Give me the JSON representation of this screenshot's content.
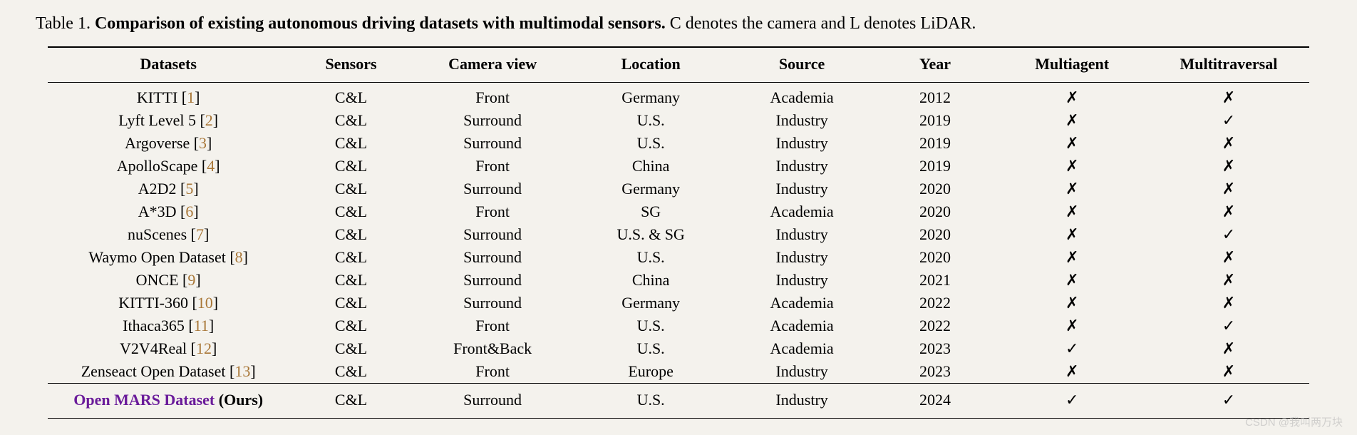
{
  "caption": {
    "prefix": "Table 1. ",
    "title": "Comparison of existing autonomous driving datasets with multimodal sensors.",
    "suffix": " C denotes the camera and L denotes LiDAR."
  },
  "columns": [
    "Datasets",
    "Sensors",
    "Camera view",
    "Location",
    "Source",
    "Year",
    "Multiagent",
    "Multitraversal"
  ],
  "rows": [
    {
      "name": "KITTI",
      "cite": "1",
      "sensors": "C&L",
      "camera": "Front",
      "location": "Germany",
      "source": "Academia",
      "year": "2012",
      "multiagent": "✗",
      "multitraversal": "✗"
    },
    {
      "name": "Lyft Level 5",
      "cite": "2",
      "sensors": "C&L",
      "camera": "Surround",
      "location": "U.S.",
      "source": "Industry",
      "year": "2019",
      "multiagent": "✗",
      "multitraversal": "✓"
    },
    {
      "name": "Argoverse",
      "cite": "3",
      "sensors": "C&L",
      "camera": "Surround",
      "location": "U.S.",
      "source": "Industry",
      "year": "2019",
      "multiagent": "✗",
      "multitraversal": "✗"
    },
    {
      "name": "ApolloScape",
      "cite": "4",
      "sensors": "C&L",
      "camera": "Front",
      "location": "China",
      "source": "Industry",
      "year": "2019",
      "multiagent": "✗",
      "multitraversal": "✗"
    },
    {
      "name": "A2D2",
      "cite": "5",
      "sensors": "C&L",
      "camera": "Surround",
      "location": "Germany",
      "source": "Industry",
      "year": "2020",
      "multiagent": "✗",
      "multitraversal": "✗"
    },
    {
      "name": "A*3D",
      "cite": "6",
      "sensors": "C&L",
      "camera": "Front",
      "location": "SG",
      "source": "Academia",
      "year": "2020",
      "multiagent": "✗",
      "multitraversal": "✗"
    },
    {
      "name": "nuScenes",
      "cite": "7",
      "sensors": "C&L",
      "camera": "Surround",
      "location": "U.S. & SG",
      "source": "Industry",
      "year": "2020",
      "multiagent": "✗",
      "multitraversal": "✓"
    },
    {
      "name": "Waymo Open Dataset",
      "cite": "8",
      "sensors": "C&L",
      "camera": "Surround",
      "location": "U.S.",
      "source": "Industry",
      "year": "2020",
      "multiagent": "✗",
      "multitraversal": "✗"
    },
    {
      "name": "ONCE",
      "cite": "9",
      "sensors": "C&L",
      "camera": "Surround",
      "location": "China",
      "source": "Industry",
      "year": "2021",
      "multiagent": "✗",
      "multitraversal": "✗"
    },
    {
      "name": "KITTI-360",
      "cite": "10",
      "sensors": "C&L",
      "camera": "Surround",
      "location": "Germany",
      "source": "Academia",
      "year": "2022",
      "multiagent": "✗",
      "multitraversal": "✗"
    },
    {
      "name": "Ithaca365",
      "cite": "11",
      "sensors": "C&L",
      "camera": "Front",
      "location": "U.S.",
      "source": "Academia",
      "year": "2022",
      "multiagent": "✗",
      "multitraversal": "✓"
    },
    {
      "name": "V2V4Real",
      "cite": "12",
      "sensors": "C&L",
      "camera": "Front&Back",
      "location": "U.S.",
      "source": "Academia",
      "year": "2023",
      "multiagent": "✓",
      "multitraversal": "✗"
    },
    {
      "name": "Zenseact Open Dataset",
      "cite": "13",
      "sensors": "C&L",
      "camera": "Front",
      "location": "Europe",
      "source": "Industry",
      "year": "2023",
      "multiagent": "✗",
      "multitraversal": "✗"
    }
  ],
  "ours": {
    "name": "Open MARS Dataset",
    "suffix": " (Ours)",
    "sensors": "C&L",
    "camera": "Surround",
    "location": "U.S.",
    "source": "Industry",
    "year": "2024",
    "multiagent": "✓",
    "multitraversal": "✓"
  },
  "watermark": "CSDN @我叫两万块",
  "style": {
    "background_color": "#f4f2ed",
    "text_color": "#000000",
    "cite_color": "#a87636",
    "ours_color": "#6a1b9a",
    "watermark_color": "#b3b3b3",
    "font_family": "Times New Roman",
    "caption_fontsize": 24,
    "table_fontsize": 22,
    "border_color": "#000000"
  }
}
